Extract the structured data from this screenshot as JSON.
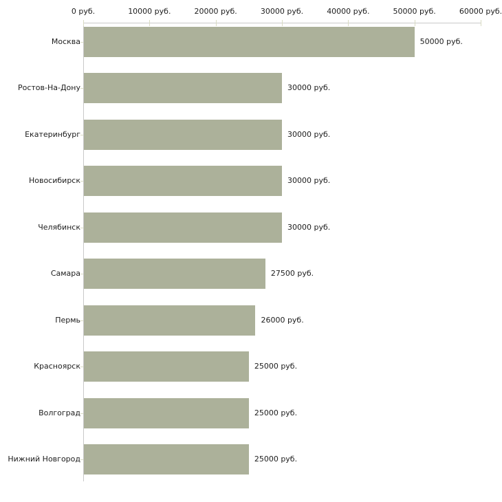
{
  "chart_data": {
    "type": "bar",
    "orientation": "horizontal",
    "title": "",
    "xlabel": "",
    "ylabel": "",
    "unit": "руб.",
    "categories": [
      "Москва",
      "Ростов-На-Дону",
      "Екатеринбург",
      "Новосибирск",
      "Челябинск",
      "Самара",
      "Пермь",
      "Красноярск",
      "Волгоград",
      "Нижний Новгород"
    ],
    "values": [
      50000,
      30000,
      30000,
      30000,
      30000,
      27500,
      26000,
      25000,
      25000,
      25000
    ],
    "value_labels": [
      "50000 руб.",
      "30000 руб.",
      "30000 руб.",
      "30000 руб.",
      "30000 руб.",
      "27500 руб.",
      "26000 руб.",
      "25000 руб.",
      "25000 руб.",
      "25000 руб."
    ],
    "x_axis": {
      "position": "top",
      "min": 0,
      "max": 60000,
      "ticks": [
        0,
        10000,
        20000,
        30000,
        40000,
        50000,
        60000
      ],
      "tick_labels": [
        "0 руб.",
        "10000 руб.",
        "20000 руб.",
        "30000 руб.",
        "40000 руб.",
        "50000 руб.",
        "60000 руб."
      ]
    },
    "grid": false,
    "legend": false,
    "colors": {
      "bar": "#acb19a",
      "axis_line": "#c9c9c9",
      "tick_mark": "#d9dbc3",
      "text": "#1c1c1c",
      "background": "#ffffff"
    }
  }
}
